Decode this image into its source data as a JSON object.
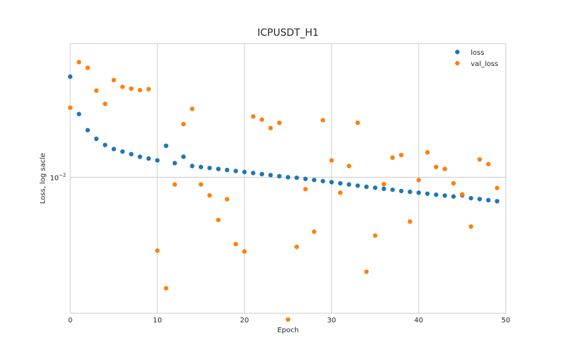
{
  "chart_data": {
    "type": "scatter",
    "title": "ICPUSDT_H1",
    "xlabel": "Epoch",
    "ylabel": "Loss, log sacle",
    "yscale": "log",
    "xlim": [
      0,
      50
    ],
    "ylim": [
      0.00282,
      0.0347
    ],
    "grid": true,
    "legend_position": "top-right",
    "x_ticks": [
      {
        "value": 0,
        "label": "0"
      },
      {
        "value": 10,
        "label": "10"
      },
      {
        "value": 20,
        "label": "20"
      },
      {
        "value": 30,
        "label": "30"
      },
      {
        "value": 40,
        "label": "40"
      },
      {
        "value": 50,
        "label": "50"
      }
    ],
    "y_ticks": [
      {
        "value": 0.01,
        "label": "10",
        "exponent": "−2"
      }
    ],
    "x": [
      0,
      1,
      2,
      3,
      4,
      5,
      6,
      7,
      8,
      9,
      10,
      11,
      12,
      13,
      14,
      15,
      16,
      17,
      18,
      19,
      20,
      21,
      22,
      23,
      24,
      25,
      26,
      27,
      28,
      29,
      30,
      31,
      32,
      33,
      34,
      35,
      36,
      37,
      38,
      39,
      40,
      41,
      42,
      43,
      44,
      45,
      46,
      47,
      48,
      49
    ],
    "series": [
      {
        "name": "loss",
        "color": "#1f77b4",
        "values": [
          0.0255,
          0.018,
          0.0155,
          0.0143,
          0.0135,
          0.013,
          0.0127,
          0.0124,
          0.0121,
          0.0119,
          0.0117,
          0.0134,
          0.0114,
          0.0121,
          0.0111,
          0.011,
          0.0109,
          0.0108,
          0.0107,
          0.0106,
          0.0105,
          0.0104,
          0.0103,
          0.0102,
          0.0101,
          0.01,
          0.00995,
          0.00985,
          0.00975,
          0.00965,
          0.00955,
          0.00945,
          0.00935,
          0.00925,
          0.00915,
          0.00907,
          0.00898,
          0.0089,
          0.0088,
          0.00873,
          0.00866,
          0.00858,
          0.0085,
          0.00843,
          0.00836,
          0.00845,
          0.00823,
          0.00816,
          0.00808,
          0.008
        ]
      },
      {
        "name": "val_loss",
        "color": "#ff7f0e",
        "values": [
          0.0191,
          0.0292,
          0.0277,
          0.0224,
          0.0198,
          0.0247,
          0.0232,
          0.0228,
          0.0225,
          0.0227,
          0.00505,
          0.00356,
          0.00935,
          0.0164,
          0.0189,
          0.00935,
          0.00845,
          0.00672,
          0.00815,
          0.00537,
          0.00501,
          0.0176,
          0.0171,
          0.0158,
          0.0166,
          0.00266,
          0.00523,
          0.00895,
          0.00603,
          0.017,
          0.0117,
          0.00866,
          0.0111,
          0.0166,
          0.00415,
          0.00581,
          0.00938,
          0.012,
          0.0123,
          0.00662,
          0.00974,
          0.0126,
          0.011,
          0.0108,
          0.00945,
          0.00853,
          0.00632,
          0.0118,
          0.0113,
          0.00905
        ]
      }
    ]
  }
}
